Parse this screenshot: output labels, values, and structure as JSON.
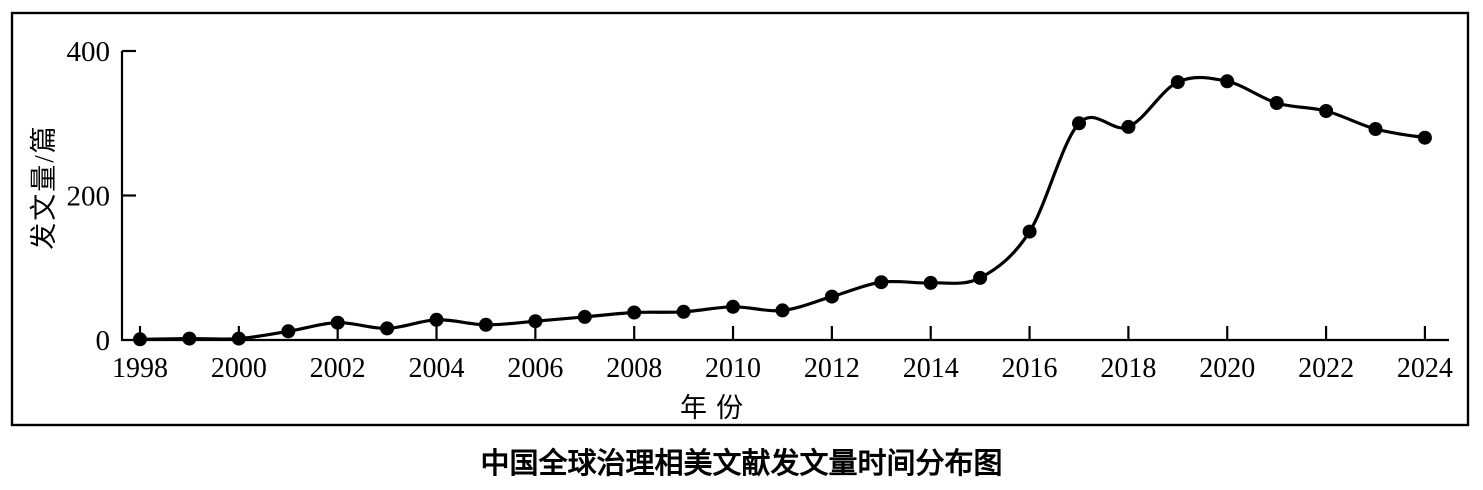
{
  "figure": {
    "background_color": "#ffffff",
    "frame_color": "#000000",
    "line_color": "#000000",
    "marker_color": "#000000",
    "text_color": "#000000"
  },
  "chart_data": {
    "type": "line",
    "title": "中国全球治理相美文献发文量时间分布图",
    "xlabel": "年份",
    "ylabel": "发文量/篇",
    "x": [
      1998,
      1999,
      2000,
      2001,
      2002,
      2003,
      2004,
      2005,
      2006,
      2007,
      2008,
      2009,
      2010,
      2011,
      2012,
      2013,
      2014,
      2015,
      2016,
      2017,
      2018,
      2019,
      2020,
      2021,
      2022,
      2023,
      2024
    ],
    "values": [
      1,
      2,
      2,
      12,
      24,
      16,
      28,
      21,
      26,
      32,
      38,
      39,
      46,
      41,
      60,
      80,
      79,
      86,
      150,
      300,
      295,
      357,
      358,
      328,
      317,
      292,
      280
    ],
    "ylim": [
      0,
      400
    ],
    "yticks": [
      0,
      200,
      400
    ],
    "xticks": [
      1998,
      2000,
      2002,
      2004,
      2006,
      2008,
      2010,
      2012,
      2014,
      2016,
      2018,
      2020,
      2022,
      2024
    ],
    "grid": false,
    "legend": null,
    "marker": "filled-circle",
    "line_style": "smooth"
  }
}
